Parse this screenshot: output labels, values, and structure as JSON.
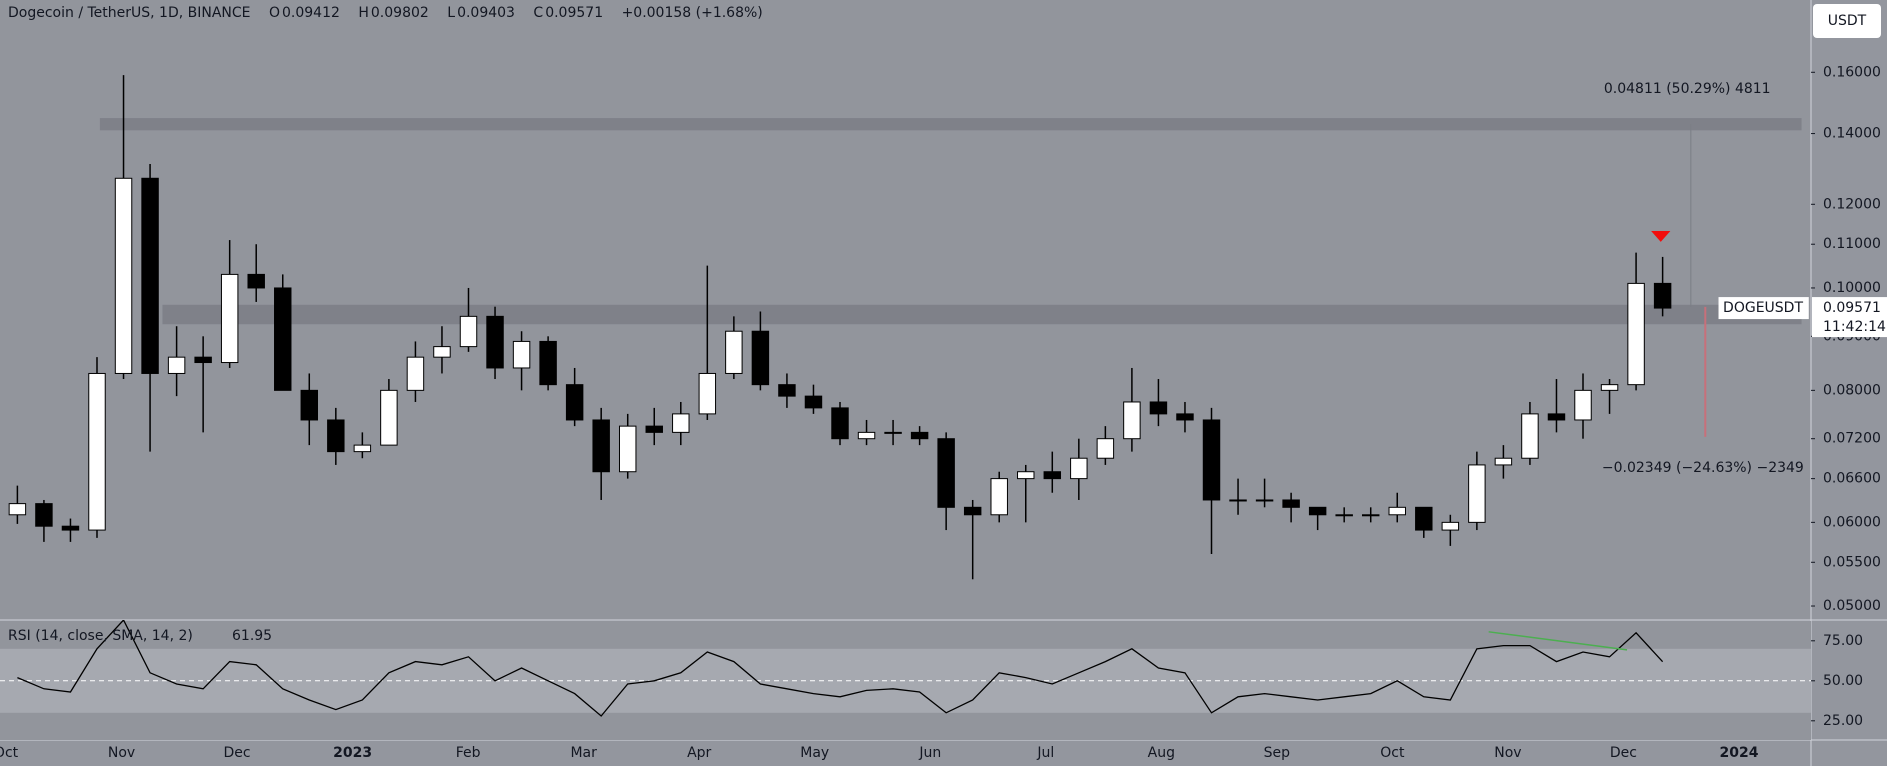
{
  "header": {
    "symbol": "Dogecoin / TetherUS, 1D, BINANCE",
    "o": "O",
    "open": "0.09412",
    "h": "H",
    "high": "0.09802",
    "l": "L",
    "low": "0.09403",
    "c": "C",
    "change": "+0.00158 (+1.68%)"
  },
  "currency": "USDT",
  "symbol_tag": "DOGEUSDT",
  "countdown": "11:42:14",
  "chart_data": [
    {
      "type": "candlestick",
      "open": [
        0.061,
        0.0625,
        0.0595,
        0.059,
        0.083,
        0.127,
        0.083,
        0.086,
        0.085,
        0.103,
        0.1,
        0.08,
        0.075,
        0.07,
        0.071,
        0.08,
        0.086,
        0.088,
        0.094,
        0.084,
        0.089,
        0.081,
        0.075,
        0.067,
        0.074,
        0.073,
        0.076,
        0.083,
        0.091,
        0.081,
        0.079,
        0.077,
        0.072,
        0.073,
        0.073,
        0.072,
        0.062,
        0.061,
        0.066,
        0.067,
        0.066,
        0.069,
        0.072,
        0.078,
        0.076,
        0.075,
        0.063,
        0.063,
        0.063,
        0.062,
        0.061,
        0.061,
        0.061,
        0.062,
        0.059,
        0.06,
        0.068,
        0.069,
        0.076,
        0.075,
        0.08,
        0.081,
        0.101
      ],
      "high": [
        0.065,
        0.063,
        0.0605,
        0.086,
        0.159,
        0.131,
        0.092,
        0.09,
        0.111,
        0.11,
        0.103,
        0.083,
        0.077,
        0.073,
        0.082,
        0.089,
        0.092,
        0.1,
        0.096,
        0.091,
        0.09,
        0.084,
        0.077,
        0.076,
        0.077,
        0.078,
        0.105,
        0.094,
        0.095,
        0.083,
        0.081,
        0.078,
        0.075,
        0.075,
        0.074,
        0.073,
        0.063,
        0.067,
        0.068,
        0.07,
        0.072,
        0.074,
        0.084,
        0.082,
        0.078,
        0.077,
        0.066,
        0.066,
        0.064,
        0.062,
        0.062,
        0.062,
        0.064,
        0.062,
        0.061,
        0.07,
        0.071,
        0.078,
        0.082,
        0.083,
        0.082,
        0.108,
        0.107
      ],
      "low": [
        0.0598,
        0.0575,
        0.0575,
        0.058,
        0.082,
        0.07,
        0.079,
        0.073,
        0.084,
        0.097,
        0.08,
        0.071,
        0.068,
        0.069,
        0.071,
        0.078,
        0.083,
        0.087,
        0.082,
        0.08,
        0.08,
        0.074,
        0.063,
        0.066,
        0.071,
        0.071,
        0.075,
        0.082,
        0.08,
        0.077,
        0.076,
        0.071,
        0.071,
        0.071,
        0.071,
        0.059,
        0.053,
        0.06,
        0.06,
        0.064,
        0.063,
        0.068,
        0.07,
        0.074,
        0.073,
        0.056,
        0.061,
        0.062,
        0.06,
        0.059,
        0.06,
        0.06,
        0.06,
        0.058,
        0.057,
        0.059,
        0.066,
        0.068,
        0.073,
        0.072,
        0.076,
        0.08,
        0.094
      ],
      "close": [
        0.0625,
        0.0595,
        0.059,
        0.083,
        0.127,
        0.083,
        0.086,
        0.085,
        0.103,
        0.1,
        0.08,
        0.075,
        0.07,
        0.071,
        0.08,
        0.086,
        0.088,
        0.094,
        0.084,
        0.089,
        0.081,
        0.075,
        0.067,
        0.074,
        0.073,
        0.076,
        0.083,
        0.091,
        0.081,
        0.079,
        0.077,
        0.072,
        0.073,
        0.073,
        0.072,
        0.062,
        0.061,
        0.066,
        0.067,
        0.066,
        0.069,
        0.072,
        0.078,
        0.076,
        0.075,
        0.063,
        0.063,
        0.063,
        0.062,
        0.061,
        0.061,
        0.061,
        0.062,
        0.059,
        0.06,
        0.068,
        0.069,
        0.076,
        0.075,
        0.08,
        0.081,
        0.101,
        0.09571
      ],
      "up_color": "#ffffff",
      "down_color": "#000000",
      "wick_color": "#000000",
      "log_scale": true,
      "ylim": [
        0.0485,
        0.1873
      ],
      "yticks": [
        {
          "value": 0.16,
          "label": "0.16000"
        },
        {
          "value": 0.14,
          "label": "0.14000"
        },
        {
          "value": 0.12,
          "label": "0.12000"
        },
        {
          "value": 0.11,
          "label": "0.11000"
        },
        {
          "value": 0.1,
          "label": "0.10000"
        },
        {
          "value": 0.09,
          "label": "0.09000"
        },
        {
          "value": 0.08,
          "label": "0.08000"
        },
        {
          "value": 0.072,
          "label": "0.07200"
        },
        {
          "value": 0.066,
          "label": "0.06600"
        },
        {
          "value": 0.06,
          "label": "0.06000"
        },
        {
          "value": 0.055,
          "label": "0.05500"
        },
        {
          "value": 0.05,
          "label": "0.05000"
        }
      ],
      "x_labels": [
        "Oct",
        "Nov",
        "Dec",
        "2023",
        "Feb",
        "Mar",
        "Apr",
        "May",
        "Jun",
        "Jul",
        "Aug",
        "Sep",
        "Oct",
        "Nov",
        "Dec",
        "2024"
      ],
      "zones": [
        [
          0.141,
          0.1448
        ],
        [
          0.0924,
          0.0964
        ]
      ],
      "zone_color": "#7b7e86",
      "annotations": [
        "0.04811 (50.29%) 4811",
        "−0.02349 (−24.63%) −2349"
      ]
    },
    {
      "type": "line",
      "title": "RSI (14, close, SMA, 14, 2)",
      "color": "#000000",
      "values": [
        52,
        45,
        43,
        70,
        88,
        55,
        48,
        45,
        62,
        60,
        45,
        38,
        32,
        38,
        55,
        62,
        60,
        65,
        50,
        58,
        50,
        42,
        28,
        48,
        50,
        55,
        68,
        62,
        48,
        45,
        42,
        40,
        44,
        45,
        43,
        30,
        38,
        55,
        52,
        48,
        55,
        62,
        70,
        58,
        55,
        30,
        40,
        42,
        40,
        38,
        40,
        42,
        50,
        40,
        38,
        70,
        72,
        72,
        62,
        68,
        65,
        80,
        61.95
      ],
      "ylim": [
        13,
        88
      ],
      "yticks": [
        {
          "value": 75,
          "label": "75.00"
        },
        {
          "value": 50,
          "label": "50.00"
        },
        {
          "value": 25,
          "label": "25.00"
        }
      ],
      "band": [
        30,
        70
      ],
      "band_color": "#a6a9b0",
      "midline": 50,
      "divergence_color": "#4caf50"
    }
  ]
}
